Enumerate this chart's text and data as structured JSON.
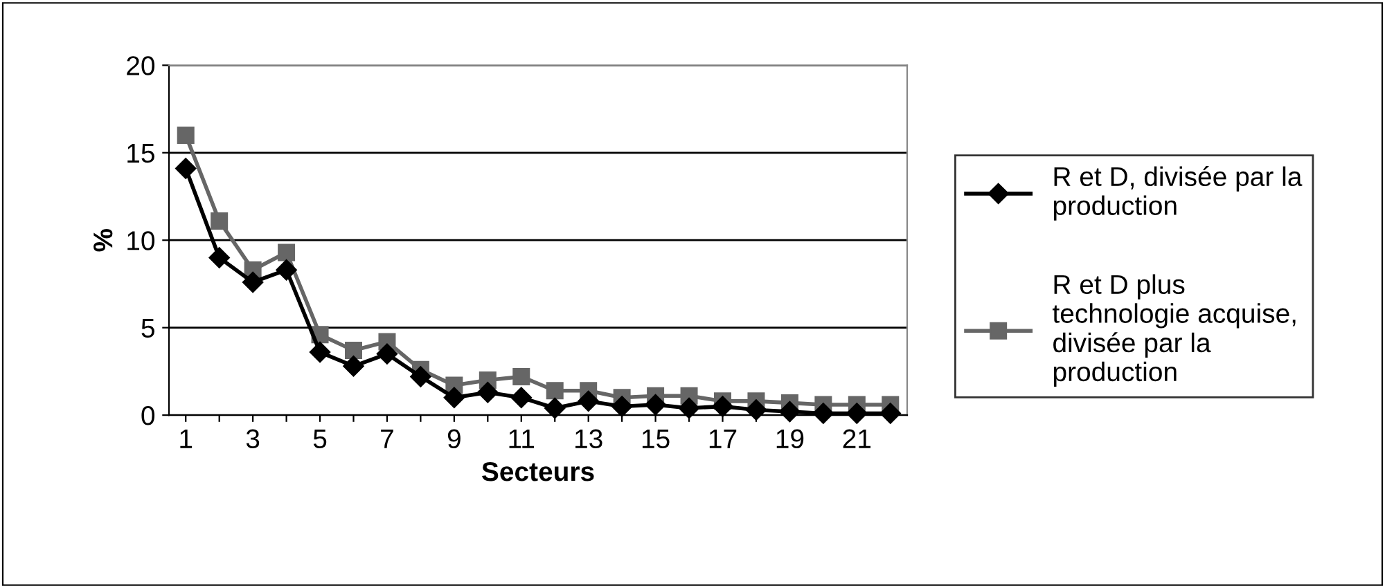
{
  "chart_data": {
    "type": "line",
    "xlabel": "Secteurs",
    "ylabel": "%",
    "categories": [
      "1",
      null,
      "3",
      null,
      "5",
      null,
      "7",
      null,
      "9",
      null,
      "11",
      null,
      "13",
      null,
      "15",
      null,
      "17",
      null,
      "19",
      null,
      "21",
      null
    ],
    "series": [
      {
        "name": "R et D, divisée par la production",
        "color": "#000000",
        "marker": "diamond",
        "values": [
          14.1,
          9.0,
          7.6,
          8.3,
          3.6,
          2.8,
          3.5,
          2.2,
          1.0,
          1.3,
          1.0,
          0.4,
          0.8,
          0.5,
          0.6,
          0.4,
          0.5,
          0.3,
          0.2,
          0.1,
          0.1,
          0.1
        ]
      },
      {
        "name": "R et D plus technologie acquise, divisée par la production",
        "color": "#666666",
        "marker": "square",
        "values": [
          16.0,
          11.1,
          8.3,
          9.3,
          4.6,
          3.7,
          4.2,
          2.6,
          1.7,
          2.0,
          2.2,
          1.4,
          1.4,
          1.0,
          1.1,
          1.1,
          0.8,
          0.8,
          0.7,
          0.6,
          0.6,
          0.6
        ]
      }
    ],
    "ylim": [
      0,
      20
    ],
    "yticks": [
      0,
      5,
      10,
      15,
      20
    ],
    "grid": "y",
    "legend": "right"
  }
}
